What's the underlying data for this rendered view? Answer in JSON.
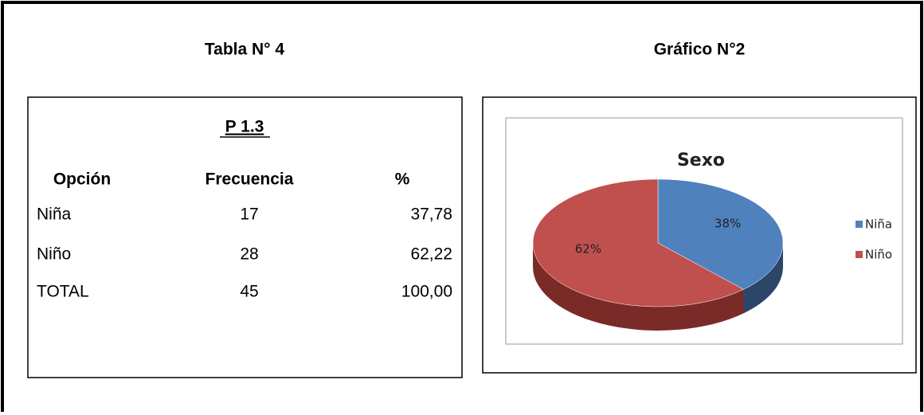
{
  "document": {
    "table_heading": "Tabla N° 4",
    "chart_heading": "Gráfico N°2"
  },
  "table": {
    "title": "P 1.3",
    "columns": [
      "Opción",
      "Frecuencia",
      "%"
    ],
    "rows": [
      [
        "Niña",
        "17",
        "37,78"
      ],
      [
        "Niño",
        "28",
        "62,22"
      ],
      [
        "TOTAL",
        "45",
        "100,00"
      ]
    ]
  },
  "chart_data": {
    "type": "pie",
    "title": "Sexo",
    "categories": [
      "Niña",
      "Niño"
    ],
    "values": [
      38,
      62
    ],
    "value_labels": [
      "38%",
      "62%"
    ],
    "colors": [
      "#4f81bd",
      "#c0504d"
    ],
    "side_colors": [
      "#2b4669",
      "#7a2a27"
    ],
    "legend": "right"
  }
}
